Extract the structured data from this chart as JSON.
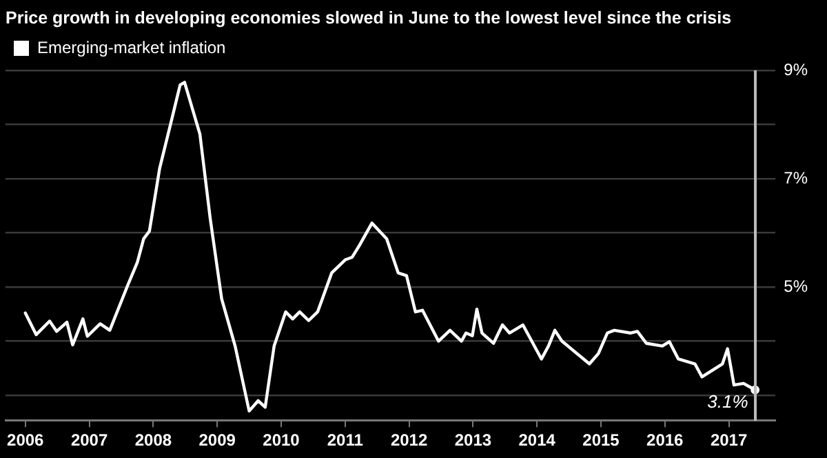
{
  "chart_data": {
    "type": "line",
    "title": "Price growth in developing economies slowed in June to the lowest level since the crisis",
    "series": [
      {
        "name": "Emerging-market inflation",
        "color": "#ffffff",
        "x": [
          2006.0,
          2006.17,
          2006.38,
          2006.49,
          2006.65,
          2006.74,
          2006.9,
          2006.97,
          2007.17,
          2007.32,
          2007.6,
          2007.75,
          2007.85,
          2007.94,
          2008.1,
          2008.28,
          2008.42,
          2008.49,
          2008.73,
          2008.89,
          2009.07,
          2009.28,
          2009.5,
          2009.64,
          2009.75,
          2009.89,
          2010.07,
          2010.18,
          2010.29,
          2010.43,
          2010.57,
          2010.79,
          2011.0,
          2011.11,
          2011.22,
          2011.42,
          2011.65,
          2011.83,
          2011.96,
          2012.1,
          2012.21,
          2012.46,
          2012.64,
          2012.82,
          2012.89,
          2012.99,
          2013.06,
          2013.14,
          2013.32,
          2013.46,
          2013.57,
          2013.78,
          2014.07,
          2014.18,
          2014.28,
          2014.39,
          2014.82,
          2014.96,
          2015.1,
          2015.21,
          2015.46,
          2015.57,
          2015.71,
          2015.96,
          2016.07,
          2016.21,
          2016.47,
          2016.58,
          2016.9,
          2016.98,
          2017.08,
          2017.23,
          2017.41
        ],
        "values": [
          4.52,
          4.12,
          4.37,
          4.18,
          4.35,
          3.93,
          4.41,
          4.09,
          4.32,
          4.2,
          5.03,
          5.45,
          5.89,
          6.03,
          7.19,
          8.05,
          8.73,
          8.78,
          7.82,
          6.27,
          4.78,
          3.91,
          2.71,
          2.9,
          2.78,
          3.91,
          4.54,
          4.41,
          4.54,
          4.38,
          4.54,
          5.26,
          5.5,
          5.55,
          5.76,
          6.18,
          5.89,
          5.26,
          5.21,
          4.54,
          4.57,
          4.0,
          4.2,
          4.0,
          4.15,
          4.1,
          4.59,
          4.15,
          3.96,
          4.3,
          4.15,
          4.3,
          3.67,
          3.91,
          4.2,
          4.0,
          3.58,
          3.77,
          4.15,
          4.2,
          4.15,
          4.18,
          3.96,
          3.91,
          3.99,
          3.67,
          3.58,
          3.34,
          3.58,
          3.86,
          3.19,
          3.22,
          3.1
        ]
      }
    ],
    "xlim": [
      2005.69,
      2017.73
    ],
    "xticks": [
      2006,
      2007,
      2008,
      2009,
      2010,
      2011,
      2012,
      2013,
      2014,
      2015,
      2016,
      2017
    ],
    "ylim": [
      2.54,
      9
    ],
    "yticks": [
      {
        "value": 3,
        "label": null
      },
      {
        "value": 4,
        "label": null
      },
      {
        "value": 5,
        "label": "5%"
      },
      {
        "value": 6,
        "label": null
      },
      {
        "value": 7,
        "label": "7%"
      },
      {
        "value": 8,
        "label": null
      },
      {
        "value": 9,
        "label": "9%"
      }
    ],
    "annotations": [
      {
        "text": "3.1%",
        "x": 2017.41,
        "y": 3.1
      }
    ],
    "grid": "y",
    "legend": "top left",
    "marker": "none",
    "line_style": "solid"
  }
}
